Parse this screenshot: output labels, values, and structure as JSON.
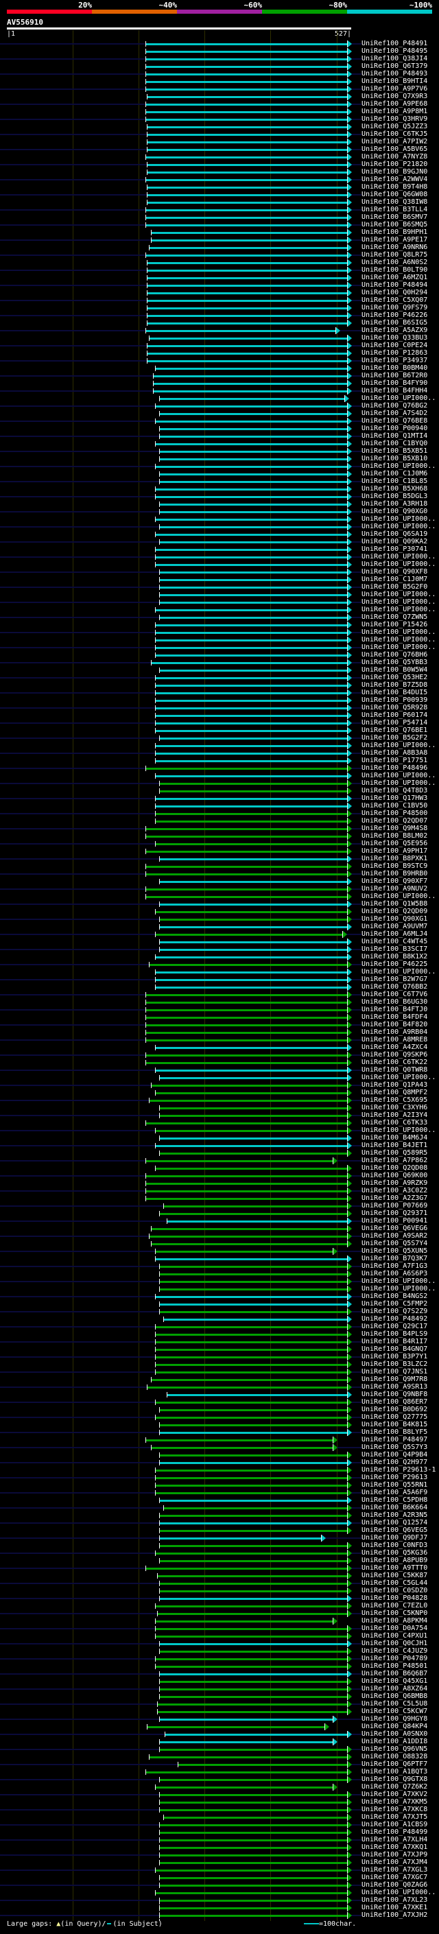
{
  "identity_key": [
    {
      "label": "20%",
      "color": "#ff0022"
    },
    {
      "label": "~40%",
      "color": "#e06000"
    },
    {
      "label": "~60%",
      "color": "#a020a0"
    },
    {
      "label": "~80%",
      "color": "#00a000"
    },
    {
      "label": "~100%",
      "color": "#00c8c8"
    }
  ],
  "query": {
    "id": "AV556910",
    "start_label": "|1",
    "end_label": "527|",
    "length": 527
  },
  "bin_colors": {
    "100": "#00c8c8",
    "80": "#00a000",
    "background_line": "#0a0a3a"
  },
  "label_prefix": "UniRef100_",
  "row_fields": [
    "label",
    "q_start",
    "q_end",
    "identity_bin"
  ],
  "rows": [
    [
      "UniRef100_P48491",
      213,
      527,
      "100"
    ],
    [
      "UniRef100_P48495",
      213,
      527,
      "100"
    ],
    [
      "UniRef100_Q38JI4",
      213,
      527,
      "100"
    ],
    [
      "UniRef100_Q6T379",
      213,
      527,
      "100"
    ],
    [
      "UniRef100_P48493",
      213,
      527,
      "100"
    ],
    [
      "UniRef100_B9HTI4",
      213,
      527,
      "100"
    ],
    [
      "UniRef100_A9P7V6",
      213,
      527,
      "100"
    ],
    [
      "UniRef100_Q7X9R3",
      215,
      527,
      "100"
    ],
    [
      "UniRef100_A9PE68",
      213,
      527,
      "100"
    ],
    [
      "UniRef100_A9P8M1",
      213,
      527,
      "100"
    ],
    [
      "UniRef100_Q3HRV9",
      213,
      527,
      "100"
    ],
    [
      "UniRef100_Q5JZZ3",
      215,
      527,
      "100"
    ],
    [
      "UniRef100_C6TKJ5",
      215,
      527,
      "100"
    ],
    [
      "UniRef100_A7PIW2",
      215,
      527,
      "100"
    ],
    [
      "UniRef100_A5BV65",
      215,
      527,
      "100"
    ],
    [
      "UniRef100_A7NYZ8",
      213,
      527,
      "100"
    ],
    [
      "UniRef100_P21820",
      215,
      527,
      "100"
    ],
    [
      "UniRef100_B9GJN0",
      215,
      527,
      "100"
    ],
    [
      "UniRef100_A2WWV4",
      213,
      527,
      "100"
    ],
    [
      "UniRef100_B9T4H8",
      215,
      527,
      "100"
    ],
    [
      "UniRef100_Q6GW08",
      215,
      527,
      "100"
    ],
    [
      "UniRef100_Q38IW8",
      215,
      527,
      "100"
    ],
    [
      "UniRef100_B3TLL4",
      213,
      527,
      "100"
    ],
    [
      "UniRef100_B6SMV7",
      213,
      527,
      "100"
    ],
    [
      "UniRef100_B6SMQ5",
      213,
      527,
      "100"
    ],
    [
      "UniRef100_B9HPH1",
      221,
      527,
      "100"
    ],
    [
      "UniRef100_A9PE17",
      221,
      527,
      "100"
    ],
    [
      "UniRef100_A9NRN6",
      218,
      527,
      "100"
    ],
    [
      "UniRef100_Q8LR75",
      213,
      527,
      "100"
    ],
    [
      "UniRef100_A6N0S2",
      215,
      527,
      "100"
    ],
    [
      "UniRef100_B0LT90",
      215,
      527,
      "100"
    ],
    [
      "UniRef100_A6MZQ1",
      215,
      527,
      "100"
    ],
    [
      "UniRef100_P48494",
      215,
      527,
      "100"
    ],
    [
      "UniRef100_Q0H294",
      215,
      527,
      "100"
    ],
    [
      "UniRef100_C5XQ07",
      215,
      527,
      "100"
    ],
    [
      "UniRef100_Q9FS79",
      215,
      527,
      "100"
    ],
    [
      "UniRef100_P46226",
      215,
      527,
      "100"
    ],
    [
      "UniRef100_B6SIG5",
      215,
      527,
      "100"
    ],
    [
      "UniRef100_A5AZX9",
      213,
      509,
      "100"
    ],
    [
      "UniRef100_Q33BU3",
      218,
      527,
      "100"
    ],
    [
      "UniRef100_C0PE24",
      215,
      527,
      "100"
    ],
    [
      "UniRef100_P12863",
      215,
      527,
      "100"
    ],
    [
      "UniRef100_P34937",
      215,
      527,
      "100"
    ],
    [
      "UniRef100_B0BM40",
      227,
      527,
      "100"
    ],
    [
      "UniRef100_B6T2R0",
      224,
      527,
      "100"
    ],
    [
      "UniRef100_B4FY90",
      224,
      527,
      "100"
    ],
    [
      "UniRef100_B4FHH4",
      224,
      527,
      "100"
    ],
    [
      "UniRef100_UPI000..",
      234,
      523,
      "100"
    ],
    [
      "UniRef100_Q76BG2",
      227,
      527,
      "100"
    ],
    [
      "UniRef100_A7S4D2",
      234,
      527,
      "100"
    ],
    [
      "UniRef100_Q76BE8",
      227,
      527,
      "100"
    ],
    [
      "UniRef100_P00940",
      234,
      527,
      "100"
    ],
    [
      "UniRef100_Q1MTI4",
      234,
      527,
      "100"
    ],
    [
      "UniRef100_C1BYQ0",
      227,
      527,
      "100"
    ],
    [
      "UniRef100_B5XB51",
      234,
      527,
      "100"
    ],
    [
      "UniRef100_B5XB10",
      234,
      527,
      "100"
    ],
    [
      "UniRef100_UPI000..",
      227,
      527,
      "100"
    ],
    [
      "UniRef100_C1J0M6",
      234,
      527,
      "100"
    ],
    [
      "UniRef100_C1BL85",
      234,
      527,
      "100"
    ],
    [
      "UniRef100_B5XH68",
      227,
      527,
      "100"
    ],
    [
      "UniRef100_B5DGL3",
      227,
      527,
      "100"
    ],
    [
      "UniRef100_A3RH18",
      234,
      527,
      "100"
    ],
    [
      "UniRef100_Q90XG0",
      234,
      527,
      "100"
    ],
    [
      "UniRef100_UPI000..",
      227,
      527,
      "100"
    ],
    [
      "UniRef100_UPI000..",
      234,
      527,
      "100"
    ],
    [
      "UniRef100_Q6SA19",
      227,
      527,
      "100"
    ],
    [
      "UniRef100_Q09KA2",
      234,
      527,
      "100"
    ],
    [
      "UniRef100_P30741",
      227,
      527,
      "100"
    ],
    [
      "UniRef100_UPI000..",
      227,
      527,
      "100"
    ],
    [
      "UniRef100_UPI000..",
      227,
      527,
      "100"
    ],
    [
      "UniRef100_Q90XF8",
      234,
      527,
      "100"
    ],
    [
      "UniRef100_C1J0M7",
      234,
      527,
      "100"
    ],
    [
      "UniRef100_B5G2F0",
      234,
      527,
      "100"
    ],
    [
      "UniRef100_UPI000..",
      234,
      527,
      "100"
    ],
    [
      "UniRef100_UPI000..",
      234,
      527,
      "100"
    ],
    [
      "UniRef100_UPI000..",
      227,
      527,
      "100"
    ],
    [
      "UniRef100_Q7ZWN5",
      234,
      527,
      "100"
    ],
    [
      "UniRef100_P15426",
      227,
      527,
      "100"
    ],
    [
      "UniRef100_UPI000..",
      227,
      527,
      "100"
    ],
    [
      "UniRef100_UPI000..",
      227,
      527,
      "100"
    ],
    [
      "UniRef100_UPI000..",
      227,
      527,
      "100"
    ],
    [
      "UniRef100_Q76BH6",
      227,
      527,
      "100"
    ],
    [
      "UniRef100_Q5YBB3",
      221,
      527,
      "100"
    ],
    [
      "UniRef100_B0W5W4",
      234,
      527,
      "100"
    ],
    [
      "UniRef100_Q53HE2",
      227,
      527,
      "100"
    ],
    [
      "UniRef100_B7Z5D8",
      227,
      527,
      "100"
    ],
    [
      "UniRef100_B4DUI5",
      227,
      527,
      "100"
    ],
    [
      "UniRef100_P00939",
      227,
      527,
      "100"
    ],
    [
      "UniRef100_Q5R928",
      227,
      527,
      "100"
    ],
    [
      "UniRef100_P60174",
      227,
      527,
      "100"
    ],
    [
      "UniRef100_P54714",
      227,
      527,
      "100"
    ],
    [
      "UniRef100_Q76BE1",
      227,
      527,
      "100"
    ],
    [
      "UniRef100_B5G2F2",
      234,
      527,
      "100"
    ],
    [
      "UniRef100_UPI000..",
      227,
      527,
      "100"
    ],
    [
      "UniRef100_A8B3A8",
      227,
      527,
      "100"
    ],
    [
      "UniRef100_P17751",
      227,
      527,
      "100"
    ],
    [
      "UniRef100_P48496",
      213,
      527,
      "80"
    ],
    [
      "UniRef100_UPI000..",
      227,
      527,
      "100"
    ],
    [
      "UniRef100_UPI000..",
      234,
      527,
      "80"
    ],
    [
      "UniRef100_Q4T8D3",
      234,
      527,
      "80"
    ],
    [
      "UniRef100_Q17HW3",
      227,
      527,
      "100"
    ],
    [
      "UniRef100_C1BV50",
      227,
      527,
      "100"
    ],
    [
      "UniRef100_P48500",
      227,
      527,
      "80"
    ],
    [
      "UniRef100_Q2QD07",
      227,
      527,
      "80"
    ],
    [
      "UniRef100_Q9M4S8",
      213,
      527,
      "80"
    ],
    [
      "UniRef100_B8LM02",
      213,
      527,
      "80"
    ],
    [
      "UniRef100_Q5E956",
      227,
      527,
      "80"
    ],
    [
      "UniRef100_A9PH17",
      213,
      527,
      "80"
    ],
    [
      "UniRef100_B8PXK1",
      234,
      527,
      "100"
    ],
    [
      "UniRef100_B9STC9",
      213,
      527,
      "80"
    ],
    [
      "UniRef100_B9HRB0",
      213,
      527,
      "80"
    ],
    [
      "UniRef100_Q90XF7",
      234,
      527,
      "100"
    ],
    [
      "UniRef100_A9NUV2",
      213,
      527,
      "80"
    ],
    [
      "UniRef100_UPI000..",
      213,
      527,
      "80"
    ],
    [
      "UniRef100_Q1W5B8",
      234,
      527,
      "100"
    ],
    [
      "UniRef100_Q2QD09",
      227,
      527,
      "80"
    ],
    [
      "UniRef100_Q90XG1",
      234,
      527,
      "80"
    ],
    [
      "UniRef100_A9UVM7",
      234,
      527,
      "100"
    ],
    [
      "UniRef100_A6MLJ4",
      227,
      520,
      "80"
    ],
    [
      "UniRef100_C4WT45",
      234,
      527,
      "100"
    ],
    [
      "UniRef100_B3SCI7",
      234,
      527,
      "100"
    ],
    [
      "UniRef100_B8K1X2",
      227,
      527,
      "100"
    ],
    [
      "UniRef100_P46225",
      218,
      527,
      "80"
    ],
    [
      "UniRef100_UPI000..",
      227,
      527,
      "100"
    ],
    [
      "UniRef100_B2W7G7",
      227,
      527,
      "100"
    ],
    [
      "UniRef100_Q76BB2",
      227,
      527,
      "100"
    ],
    [
      "UniRef100_C6T7V6",
      213,
      527,
      "80"
    ],
    [
      "UniRef100_B6UG30",
      213,
      527,
      "80"
    ],
    [
      "UniRef100_B4FTJ0",
      213,
      527,
      "80"
    ],
    [
      "UniRef100_B4FDF4",
      213,
      527,
      "80"
    ],
    [
      "UniRef100_B4F820",
      213,
      527,
      "80"
    ],
    [
      "UniRef100_A9RB04",
      213,
      527,
      "80"
    ],
    [
      "UniRef100_A8MRE8",
      213,
      527,
      "80"
    ],
    [
      "UniRef100_A4ZXC4",
      227,
      527,
      "100"
    ],
    [
      "UniRef100_Q9SKP6",
      213,
      527,
      "80"
    ],
    [
      "UniRef100_C6TK22",
      213,
      527,
      "80"
    ],
    [
      "UniRef100_Q0TWR8",
      227,
      527,
      "100"
    ],
    [
      "UniRef100_UPI000..",
      234,
      527,
      "100"
    ],
    [
      "UniRef100_Q1PA43",
      221,
      527,
      "80"
    ],
    [
      "UniRef100_Q8MPF2",
      227,
      527,
      "80"
    ],
    [
      "UniRef100_C5X695",
      218,
      527,
      "80"
    ],
    [
      "UniRef100_C3XYH6",
      234,
      527,
      "80"
    ],
    [
      "UniRef100_A2I3Y4",
      234,
      527,
      "80"
    ],
    [
      "UniRef100_C6TK33",
      213,
      527,
      "80"
    ],
    [
      "UniRef100_UPI000..",
      227,
      527,
      "80"
    ],
    [
      "UniRef100_B4M6J4",
      234,
      527,
      "100"
    ],
    [
      "UniRef100_B4JET1",
      227,
      527,
      "100"
    ],
    [
      "UniRef100_Q589R5",
      234,
      527,
      "80"
    ],
    [
      "UniRef100_A7P862",
      213,
      505,
      "80"
    ],
    [
      "UniRef100_Q2QD08",
      227,
      527,
      "80"
    ],
    [
      "UniRef100_Q69K00",
      213,
      527,
      "80"
    ],
    [
      "UniRef100_A9RZK9",
      213,
      527,
      "80"
    ],
    [
      "UniRef100_A3C0Z2",
      213,
      527,
      "80"
    ],
    [
      "UniRef100_A2Z3G7",
      213,
      527,
      "80"
    ],
    [
      "UniRef100_P07669",
      240,
      527,
      "80"
    ],
    [
      "UniRef100_Q29371",
      234,
      527,
      "80"
    ],
    [
      "UniRef100_P00941",
      245,
      527,
      "100"
    ],
    [
      "UniRef100_Q6VEG6",
      221,
      527,
      "80"
    ],
    [
      "UniRef100_A9SAR2",
      218,
      527,
      "80"
    ],
    [
      "UniRef100_Q5S7Y4",
      221,
      527,
      "80"
    ],
    [
      "UniRef100_Q5XUN5",
      227,
      505,
      "80"
    ],
    [
      "UniRef100_B7Q3K7",
      227,
      527,
      "100"
    ],
    [
      "UniRef100_A7F1G3",
      234,
      527,
      "80"
    ],
    [
      "UniRef100_A6S6P3",
      234,
      527,
      "80"
    ],
    [
      "UniRef100_UPI000..",
      234,
      527,
      "80"
    ],
    [
      "UniRef100_UPI000..",
      234,
      527,
      "80"
    ],
    [
      "UniRef100_B4NGS2",
      227,
      527,
      "100"
    ],
    [
      "UniRef100_C5FMP2",
      234,
      527,
      "100"
    ],
    [
      "UniRef100_Q7S2Z9",
      234,
      527,
      "80"
    ],
    [
      "UniRef100_P48492",
      240,
      527,
      "100"
    ],
    [
      "UniRef100_Q29C17",
      227,
      527,
      "80"
    ],
    [
      "UniRef100_B4PLS9",
      227,
      527,
      "80"
    ],
    [
      "UniRef100_B4R1I7",
      227,
      527,
      "80"
    ],
    [
      "UniRef100_B4GNQ7",
      227,
      527,
      "80"
    ],
    [
      "UniRef100_B3P7Y1",
      227,
      527,
      "80"
    ],
    [
      "UniRef100_B3LZC2",
      227,
      527,
      "80"
    ],
    [
      "UniRef100_Q7JNS1",
      227,
      527,
      "80"
    ],
    [
      "UniRef100_Q9M7R8",
      221,
      527,
      "80"
    ],
    [
      "UniRef100_A9SR13",
      215,
      527,
      "80"
    ],
    [
      "UniRef100_Q9NBF8",
      245,
      527,
      "100"
    ],
    [
      "UniRef100_Q86ER7",
      227,
      527,
      "80"
    ],
    [
      "UniRef100_B0D692",
      234,
      527,
      "80"
    ],
    [
      "UniRef100_Q27775",
      227,
      527,
      "80"
    ],
    [
      "UniRef100_B4K815",
      234,
      527,
      "80"
    ],
    [
      "UniRef100_B8LYF5",
      234,
      527,
      "100"
    ],
    [
      "UniRef100_P48497",
      213,
      505,
      "80"
    ],
    [
      "UniRef100_Q5S7Y3",
      221,
      505,
      "80"
    ],
    [
      "UniRef100_Q4P9B4",
      234,
      527,
      "80"
    ],
    [
      "UniRef100_Q2H977",
      234,
      527,
      "100"
    ],
    [
      "UniRef100_P29613-1",
      227,
      527,
      "80"
    ],
    [
      "UniRef100_P29613",
      227,
      527,
      "80"
    ],
    [
      "UniRef100_Q55RN1",
      227,
      527,
      "80"
    ],
    [
      "UniRef100_A5A6F9",
      227,
      527,
      "80"
    ],
    [
      "UniRef100_C5PDH8",
      234,
      527,
      "100"
    ],
    [
      "UniRef100_B6K664",
      240,
      527,
      "80"
    ],
    [
      "UniRef100_A2R3N5",
      234,
      527,
      "80"
    ],
    [
      "UniRef100_Q12574",
      234,
      527,
      "100"
    ],
    [
      "UniRef100_Q6VEG5",
      234,
      527,
      "80"
    ],
    [
      "UniRef100_Q9DFJ7",
      234,
      487,
      "100"
    ],
    [
      "UniRef100_C0NFD3",
      234,
      527,
      "80"
    ],
    [
      "UniRef100_Q5KG36",
      227,
      527,
      "80"
    ],
    [
      "UniRef100_A8PUB9",
      234,
      527,
      "80"
    ],
    [
      "UniRef100_A9TTT0",
      213,
      527,
      "80"
    ],
    [
      "UniRef100_C5KK87",
      230,
      527,
      "80"
    ],
    [
      "UniRef100_C5GL44",
      234,
      527,
      "80"
    ],
    [
      "UniRef100_C0SDZ0",
      234,
      527,
      "80"
    ],
    [
      "UniRef100_P04828",
      234,
      527,
      "100"
    ],
    [
      "UniRef100_C7EZL0",
      227,
      527,
      "80"
    ],
    [
      "UniRef100_C5KNP0",
      230,
      527,
      "80"
    ],
    [
      "UniRef100_A8PKM4",
      227,
      505,
      "80"
    ],
    [
      "UniRef100_D0A754",
      227,
      527,
      "80"
    ],
    [
      "UniRef100_C4PXU1",
      227,
      527,
      "80"
    ],
    [
      "UniRef100_Q0CJH1",
      234,
      527,
      "100"
    ],
    [
      "UniRef100_C4JUZ9",
      234,
      527,
      "80"
    ],
    [
      "UniRef100_P04789",
      227,
      527,
      "80"
    ],
    [
      "UniRef100_P48501",
      227,
      527,
      "80"
    ],
    [
      "UniRef100_B6Q6B7",
      234,
      527,
      "100"
    ],
    [
      "UniRef100_Q45XG1",
      234,
      527,
      "80"
    ],
    [
      "UniRef100_A8XZ64",
      234,
      527,
      "80"
    ],
    [
      "UniRef100_Q6BMB8",
      234,
      527,
      "80"
    ],
    [
      "UniRef100_C5L5U8",
      230,
      527,
      "80"
    ],
    [
      "UniRef100_C5KCW7",
      230,
      527,
      "80"
    ],
    [
      "UniRef100_Q9HGY8",
      234,
      505,
      "100"
    ],
    [
      "UniRef100_Q84KP4",
      215,
      492,
      "80"
    ],
    [
      "UniRef100_A0SNX0",
      242,
      527,
      "100"
    ],
    [
      "UniRef100_A1DDI8",
      234,
      505,
      "100"
    ],
    [
      "UniRef100_Q96VN5",
      234,
      527,
      "80"
    ],
    [
      "UniRef100_O88328",
      218,
      527,
      "80"
    ],
    [
      "UniRef100_Q6PTF7",
      262,
      527,
      "80"
    ],
    [
      "UniRef100_A1BQT3",
      213,
      527,
      "80"
    ],
    [
      "UniRef100_Q9GTX8",
      234,
      527,
      "80"
    ],
    [
      "UniRef100_Q7Z6K2",
      227,
      505,
      "80"
    ],
    [
      "UniRef100_A7XKV2",
      234,
      527,
      "80"
    ],
    [
      "UniRef100_A7XKM5",
      234,
      527,
      "80"
    ],
    [
      "UniRef100_A7XKC8",
      234,
      527,
      "80"
    ],
    [
      "UniRef100_A7XJT5",
      240,
      527,
      "80"
    ],
    [
      "UniRef100_A1CBS9",
      234,
      527,
      "80"
    ],
    [
      "UniRef100_P48499",
      234,
      527,
      "80"
    ],
    [
      "UniRef100_A7XLH4",
      234,
      527,
      "80"
    ],
    [
      "UniRef100_A7XKQ1",
      234,
      527,
      "80"
    ],
    [
      "UniRef100_A7XJP9",
      234,
      527,
      "80"
    ],
    [
      "UniRef100_A7XJM4",
      234,
      527,
      "80"
    ],
    [
      "UniRef100_A7XGL3",
      227,
      527,
      "80"
    ],
    [
      "UniRef100_A7XGC7",
      234,
      527,
      "80"
    ],
    [
      "UniRef100_Q0ZAG6",
      234,
      527,
      "80"
    ],
    [
      "UniRef100_UPI000..",
      227,
      527,
      "80"
    ],
    [
      "UniRef100_A7XL23",
      234,
      527,
      "80"
    ],
    [
      "UniRef100_A7XKE1",
      234,
      527,
      "80"
    ],
    [
      "UniRef100_A7XJH2",
      234,
      527,
      "80"
    ]
  ],
  "legend": {
    "large_gaps_label": "Large gaps:",
    "query_gap_label": "(in Query)/",
    "subject_gap_label": "(in Subject)",
    "scale_label": "=100char."
  }
}
